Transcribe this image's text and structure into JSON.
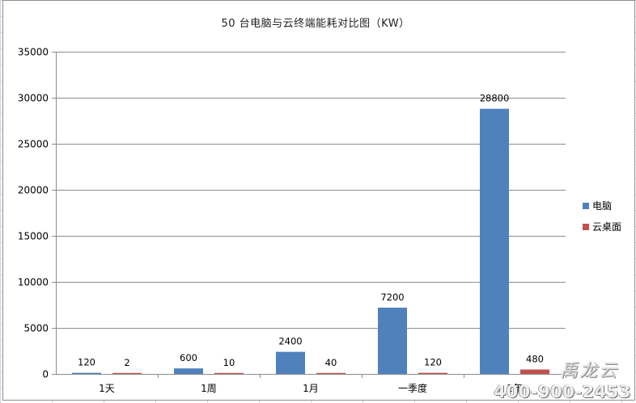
{
  "chart_data": {
    "type": "bar",
    "title": "50 台电脑与云终端能耗对比图（KW）",
    "categories": [
      "1天",
      "1周",
      "1月",
      "一季度",
      "1年"
    ],
    "series": [
      {
        "name": "电脑",
        "color": "#4f81bd",
        "values": [
          120,
          600,
          2400,
          7200,
          28800
        ]
      },
      {
        "name": "云桌面",
        "color": "#c0504d",
        "values": [
          2,
          10,
          40,
          120,
          480
        ]
      }
    ],
    "ylim": [
      0,
      35000
    ],
    "yticks": [
      0,
      5000,
      10000,
      15000,
      20000,
      25000,
      30000,
      35000
    ],
    "grid": true,
    "legend_position": "right",
    "data_labels": true
  },
  "watermark": {
    "brand": "禹龙云",
    "phone": "400-900-2453"
  }
}
